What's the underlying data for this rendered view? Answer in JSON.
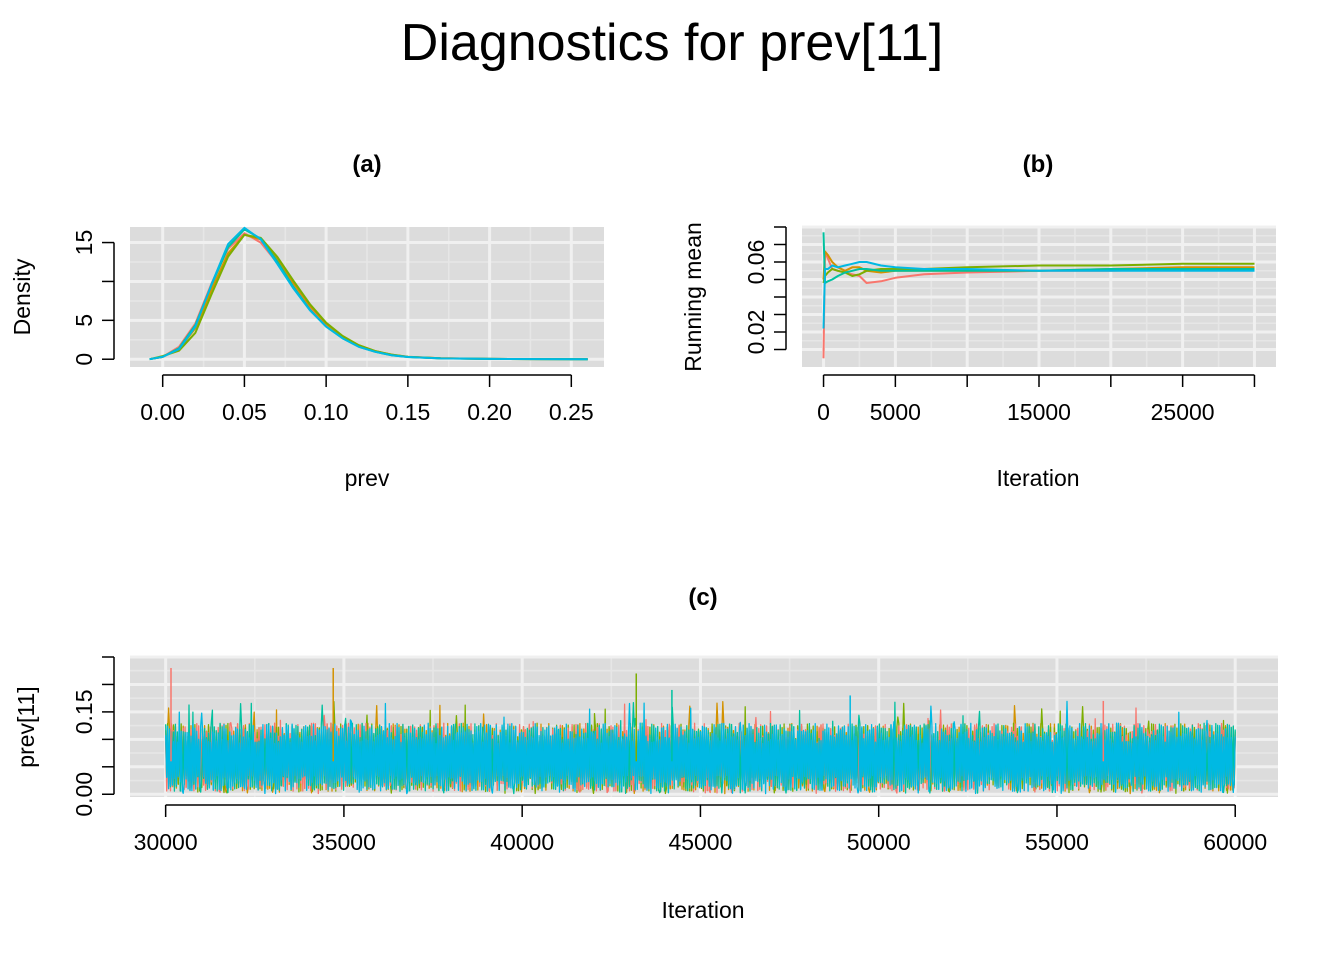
{
  "figure": {
    "title": "Diagnostics for prev[11]"
  },
  "colors": {
    "panel_bg": "#DCDCDC",
    "grid_major": "#F0F0F0",
    "grid_minor": "#E6E6E6",
    "chains": [
      "#F8766D",
      "#D39200",
      "#7CAE00",
      "#00C19F",
      "#00B9E3"
    ]
  },
  "chart_data": [
    {
      "id": "a",
      "type": "line",
      "title": "(a)",
      "xlabel": "prev",
      "ylabel": "Density",
      "xlim": [
        -0.02,
        0.27
      ],
      "ylim": [
        -1,
        17
      ],
      "xticks": [
        0.0,
        0.05,
        0.1,
        0.15,
        0.2,
        0.25
      ],
      "xtick_labels": [
        "0.00",
        "0.05",
        "0.10",
        "0.15",
        "0.20",
        "0.25"
      ],
      "yticks": [
        0,
        5,
        10,
        15
      ],
      "ytick_labels": [
        "0",
        "5",
        "",
        "15"
      ],
      "grid": true,
      "x": [
        -0.008,
        0.0,
        0.01,
        0.02,
        0.03,
        0.04,
        0.05,
        0.06,
        0.07,
        0.08,
        0.09,
        0.1,
        0.11,
        0.12,
        0.13,
        0.14,
        0.15,
        0.17,
        0.2,
        0.23,
        0.26
      ],
      "series": [
        {
          "values": [
            0.0,
            0.3,
            1.6,
            4.6,
            9.8,
            14.2,
            16.2,
            15.0,
            12.4,
            9.4,
            6.6,
            4.4,
            2.8,
            1.7,
            1.0,
            0.55,
            0.3,
            0.12,
            0.04,
            0.01,
            0.0
          ]
        },
        {
          "values": [
            0.0,
            0.3,
            1.3,
            4.0,
            9.0,
            13.6,
            16.0,
            15.4,
            12.9,
            9.8,
            6.9,
            4.6,
            2.9,
            1.8,
            1.05,
            0.6,
            0.32,
            0.13,
            0.04,
            0.01,
            0.0
          ]
        },
        {
          "values": [
            0.0,
            0.4,
            1.1,
            3.4,
            8.4,
            13.2,
            16.0,
            15.6,
            13.2,
            10.1,
            7.1,
            4.7,
            3.0,
            1.8,
            1.05,
            0.6,
            0.3,
            0.12,
            0.04,
            0.01,
            0.0
          ]
        },
        {
          "values": [
            0.0,
            0.3,
            1.4,
            4.4,
            9.6,
            14.4,
            16.7,
            15.5,
            12.6,
            9.3,
            6.4,
            4.2,
            2.7,
            1.6,
            0.95,
            0.5,
            0.28,
            0.11,
            0.04,
            0.01,
            0.0
          ]
        },
        {
          "values": [
            0.0,
            0.3,
            1.3,
            4.2,
            9.7,
            14.8,
            16.9,
            15.4,
            12.3,
            9.1,
            6.3,
            4.2,
            2.7,
            1.6,
            0.95,
            0.52,
            0.28,
            0.11,
            0.04,
            0.01,
            0.0
          ]
        }
      ]
    },
    {
      "id": "b",
      "type": "line",
      "title": "(b)",
      "xlabel": "Iteration",
      "ylabel": "Running mean",
      "xlim": [
        -1500,
        31500
      ],
      "ylim": [
        0.0,
        0.08
      ],
      "xticks": [
        0,
        5000,
        10000,
        15000,
        20000,
        25000,
        30000
      ],
      "xtick_labels": [
        "0",
        "5000",
        "",
        "15000",
        "",
        "25000",
        ""
      ],
      "yticks": [
        0.01,
        0.02,
        0.03,
        0.04,
        0.05,
        0.06,
        0.07,
        0.08
      ],
      "ytick_labels": [
        "",
        "0.02",
        "",
        "",
        "",
        "0.06",
        "",
        ""
      ],
      "grid": true,
      "x": [
        0,
        100,
        300,
        600,
        1000,
        1500,
        2000,
        2500,
        3000,
        4000,
        5000,
        7000,
        10000,
        15000,
        20000,
        25000,
        30000
      ],
      "series": [
        {
          "values": [
            0.005,
            0.066,
            0.062,
            0.056,
            0.055,
            0.054,
            0.053,
            0.052,
            0.048,
            0.049,
            0.051,
            0.053,
            0.054,
            0.055,
            0.055,
            0.056,
            0.056
          ]
        },
        {
          "values": [
            0.05,
            0.066,
            0.064,
            0.06,
            0.057,
            0.055,
            0.057,
            0.057,
            0.055,
            0.054,
            0.055,
            0.055,
            0.055,
            0.055,
            0.056,
            0.057,
            0.057
          ]
        },
        {
          "values": [
            0.048,
            0.052,
            0.054,
            0.056,
            0.055,
            0.054,
            0.052,
            0.053,
            0.055,
            0.056,
            0.056,
            0.056,
            0.057,
            0.058,
            0.058,
            0.059,
            0.059
          ]
        },
        {
          "values": [
            0.077,
            0.048,
            0.049,
            0.05,
            0.052,
            0.054,
            0.055,
            0.056,
            0.056,
            0.055,
            0.055,
            0.055,
            0.055,
            0.055,
            0.056,
            0.056,
            0.056
          ]
        },
        {
          "values": [
            0.022,
            0.056,
            0.056,
            0.058,
            0.057,
            0.058,
            0.059,
            0.06,
            0.06,
            0.058,
            0.057,
            0.056,
            0.056,
            0.055,
            0.055,
            0.055,
            0.055
          ]
        }
      ]
    },
    {
      "id": "c",
      "type": "line",
      "title": "(c)",
      "xlabel": "Iteration",
      "ylabel": "prev[11]",
      "xlim": [
        29000,
        61200
      ],
      "ylim": [
        -0.005,
        0.25
      ],
      "xticks": [
        30000,
        35000,
        40000,
        45000,
        50000,
        55000,
        60000
      ],
      "xtick_labels": [
        "30000",
        "35000",
        "40000",
        "45000",
        "50000",
        "55000",
        "60000"
      ],
      "yticks": [
        0.0,
        0.05,
        0.1,
        0.15,
        0.2,
        0.25
      ],
      "ytick_labels": [
        "0.00",
        "",
        "",
        "0.15",
        "",
        ""
      ],
      "grid": true,
      "iterations": [
        30001,
        60000
      ],
      "trace_typical_range": [
        0.005,
        0.13
      ],
      "trace_center": 0.06,
      "notable_peaks": [
        {
          "iteration": 30150,
          "value": 0.23
        },
        {
          "iteration": 34700,
          "value": 0.23
        },
        {
          "iteration": 43200,
          "value": 0.22
        },
        {
          "iteration": 44200,
          "value": 0.19
        },
        {
          "iteration": 49200,
          "value": 0.18
        },
        {
          "iteration": 56300,
          "value": 0.17
        }
      ]
    }
  ]
}
